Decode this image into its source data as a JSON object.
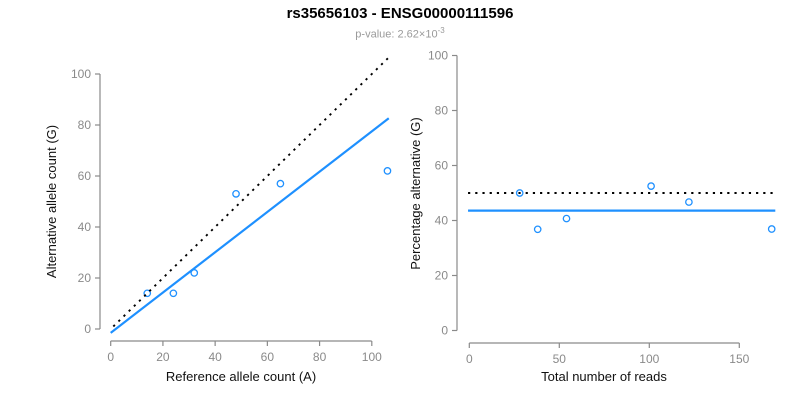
{
  "header": {
    "title": "rs35656103 - ENSG00000111596",
    "pvalue_label": "p-value: ",
    "pvalue_base": "2.62×10",
    "pvalue_exponent": "-3"
  },
  "colors": {
    "accent_blue": "#1E90FF",
    "reference_line_black": "#000000",
    "axis_gray": "#8a8a8a",
    "subtitle_gray": "#9a9a9a",
    "title_black": "#000000"
  },
  "chart_data": [
    {
      "type": "scatter",
      "xlabel": "Reference allele count (A)",
      "ylabel": "Alternative allele count (G)",
      "xticks": [
        0,
        20,
        40,
        60,
        80,
        100
      ],
      "yticks": [
        0,
        20,
        40,
        60,
        80,
        100
      ],
      "xlim": [
        0,
        110
      ],
      "ylim": [
        0,
        110
      ],
      "grid": false,
      "legend": "none",
      "points": [
        [
          14,
          14
        ],
        [
          24,
          14
        ],
        [
          32,
          22
        ],
        [
          48,
          53
        ],
        [
          65,
          57
        ],
        [
          106,
          62
        ]
      ],
      "lines": [
        {
          "name": "identity-line",
          "slope": 1,
          "intercept": 0,
          "x_range": [
            1,
            106.5
          ],
          "style": "dotted",
          "color": "#000000"
        },
        {
          "name": "fit-line",
          "slope": 0.79,
          "intercept": -1.5,
          "x_range": [
            0,
            106.5
          ],
          "style": "solid",
          "color": "#1E90FF"
        }
      ]
    },
    {
      "type": "scatter",
      "xlabel": "Total number of reads",
      "ylabel": "Percentage alternative (G)",
      "xticks": [
        0,
        50,
        100,
        150
      ],
      "yticks": [
        0,
        20,
        40,
        60,
        80,
        100
      ],
      "xlim": [
        0,
        170
      ],
      "ylim": [
        0,
        100
      ],
      "grid": false,
      "legend": "none",
      "points": [
        [
          28,
          50
        ],
        [
          38,
          36.8
        ],
        [
          54,
          40.7
        ],
        [
          101,
          52.5
        ],
        [
          122,
          46.7
        ],
        [
          168,
          36.9
        ]
      ],
      "lines": [
        {
          "name": "fifty-percent-line",
          "y": 50,
          "x_range": [
            -0.7,
            170
          ],
          "style": "dotted",
          "color": "#000000"
        },
        {
          "name": "mean-percentage-line",
          "y": 43.6,
          "x_range": [
            -0.7,
            170
          ],
          "style": "solid",
          "color": "#1E90FF"
        }
      ]
    }
  ]
}
